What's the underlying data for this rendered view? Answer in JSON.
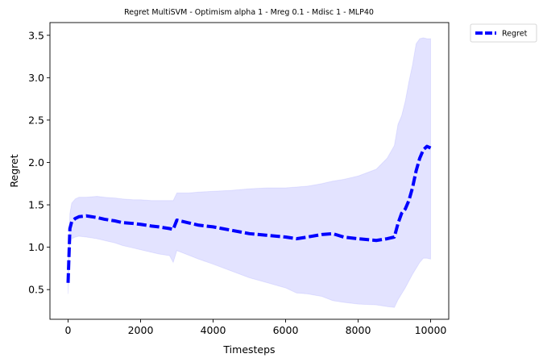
{
  "chart_data": {
    "type": "line",
    "title": "Regret MultiSVM - Optimism alpha 1 - Mreg 0.1 - Mdisc 1 - MLP40",
    "xlabel": "Timesteps",
    "ylabel": "Regret",
    "xlim": [
      -500,
      10500
    ],
    "ylim": [
      0.15,
      3.65
    ],
    "xticks": [
      0,
      2000,
      4000,
      6000,
      8000,
      10000
    ],
    "xtick_labels": [
      "0",
      "2000",
      "4000",
      "6000",
      "8000",
      "10000"
    ],
    "yticks": [
      0.5,
      1.0,
      1.5,
      2.0,
      2.5,
      3.0,
      3.5
    ],
    "ytick_labels": [
      "0.5",
      "1.0",
      "1.5",
      "2.0",
      "2.5",
      "3.0",
      "3.5"
    ],
    "grid": false,
    "legend_position": "outside-top-right",
    "series": [
      {
        "name": "Regret",
        "color": "#0000ff",
        "style": "dashed",
        "x": [
          0,
          50,
          100,
          200,
          300,
          500,
          800,
          1000,
          1300,
          1500,
          1800,
          2000,
          2300,
          2500,
          2800,
          2900,
          3000,
          3300,
          3600,
          4000,
          4500,
          5000,
          5500,
          6000,
          6300,
          6600,
          7000,
          7300,
          7600,
          8000,
          8500,
          8800,
          9000,
          9100,
          9200,
          9300,
          9400,
          9500,
          9600,
          9700,
          9800,
          9900,
          10000
        ],
        "y": [
          0.58,
          1.22,
          1.3,
          1.34,
          1.36,
          1.37,
          1.35,
          1.33,
          1.31,
          1.29,
          1.28,
          1.27,
          1.25,
          1.24,
          1.22,
          1.21,
          1.32,
          1.29,
          1.26,
          1.24,
          1.2,
          1.16,
          1.14,
          1.12,
          1.1,
          1.12,
          1.15,
          1.16,
          1.12,
          1.1,
          1.08,
          1.1,
          1.12,
          1.28,
          1.4,
          1.45,
          1.55,
          1.7,
          1.9,
          2.05,
          2.15,
          2.19,
          2.17
        ]
      }
    ],
    "band": {
      "color": "#0000ff",
      "opacity": 0.11,
      "x": [
        0,
        50,
        100,
        200,
        300,
        500,
        800,
        1000,
        1300,
        1500,
        1800,
        2000,
        2300,
        2500,
        2800,
        2900,
        3000,
        3300,
        3600,
        4000,
        4500,
        5000,
        5500,
        6000,
        6300,
        6600,
        7000,
        7300,
        7600,
        8000,
        8500,
        8800,
        9000,
        9100,
        9200,
        9300,
        9400,
        9500,
        9600,
        9700,
        9800,
        9900,
        10000
      ],
      "upper": [
        0.75,
        1.4,
        1.52,
        1.57,
        1.59,
        1.59,
        1.6,
        1.59,
        1.58,
        1.57,
        1.56,
        1.56,
        1.55,
        1.55,
        1.55,
        1.55,
        1.64,
        1.64,
        1.65,
        1.66,
        1.67,
        1.69,
        1.7,
        1.7,
        1.71,
        1.72,
        1.75,
        1.78,
        1.8,
        1.84,
        1.92,
        2.05,
        2.2,
        2.45,
        2.55,
        2.72,
        2.95,
        3.15,
        3.4,
        3.46,
        3.47,
        3.46,
        3.46
      ],
      "lower": [
        0.45,
        1.05,
        1.1,
        1.12,
        1.13,
        1.12,
        1.1,
        1.08,
        1.05,
        1.02,
        0.99,
        0.97,
        0.94,
        0.92,
        0.9,
        0.82,
        0.96,
        0.91,
        0.86,
        0.8,
        0.72,
        0.64,
        0.58,
        0.52,
        0.46,
        0.45,
        0.42,
        0.37,
        0.35,
        0.33,
        0.32,
        0.3,
        0.29,
        0.38,
        0.45,
        0.52,
        0.6,
        0.68,
        0.75,
        0.82,
        0.87,
        0.87,
        0.86
      ]
    }
  }
}
